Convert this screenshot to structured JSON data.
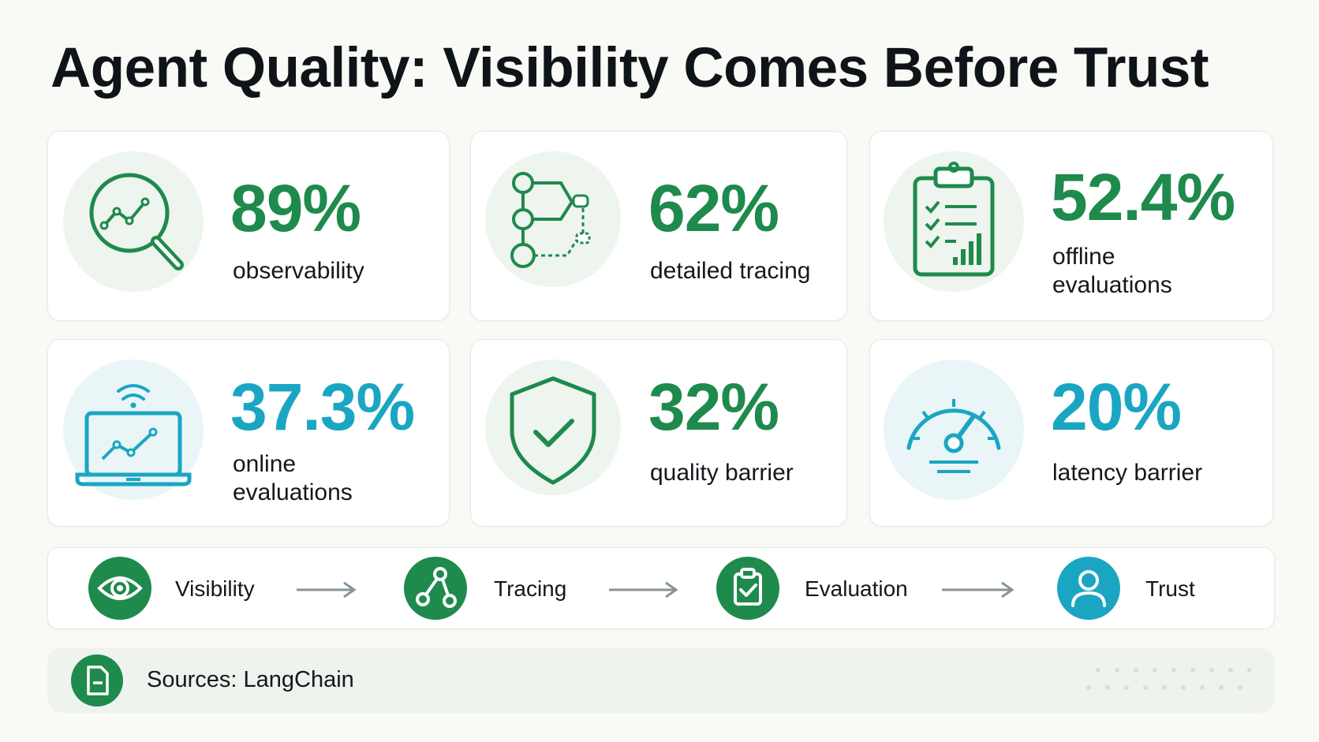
{
  "title": "Agent Quality: Visibility Comes Before Trust",
  "colors": {
    "green": "#1e8a4c",
    "teal": "#1aa6c2",
    "arrow": "#8a939a"
  },
  "stats": [
    {
      "value": "89%",
      "label_lines": [
        "observability"
      ],
      "color": "green",
      "icon": "magnifier-chart-icon"
    },
    {
      "value": "62%",
      "label_lines": [
        "detailed tracing"
      ],
      "color": "green",
      "icon": "trace-tree-icon"
    },
    {
      "value": "52.4%",
      "label_lines": [
        "offline",
        "evaluations"
      ],
      "color": "green",
      "icon": "clipboard-checklist-icon"
    },
    {
      "value": "37.3%",
      "label_lines": [
        "online",
        "evaluations"
      ],
      "color": "teal",
      "icon": "laptop-wifi-chart-icon"
    },
    {
      "value": "32%",
      "label_lines": [
        "quality barrier"
      ],
      "color": "green",
      "icon": "shield-check-icon"
    },
    {
      "value": "20%",
      "label_lines": [
        "latency barrier"
      ],
      "color": "teal",
      "icon": "speedometer-icon"
    }
  ],
  "flow": [
    {
      "label": "Visibility",
      "icon": "eye-icon",
      "color": "green"
    },
    {
      "label": "Tracing",
      "icon": "nodes-icon",
      "color": "green"
    },
    {
      "label": "Evaluation",
      "icon": "clipboard-check-icon",
      "color": "green"
    },
    {
      "label": "Trust",
      "icon": "user-icon",
      "color": "teal"
    }
  ],
  "source": {
    "label": "Sources: LangChain",
    "icon": "document-icon"
  }
}
